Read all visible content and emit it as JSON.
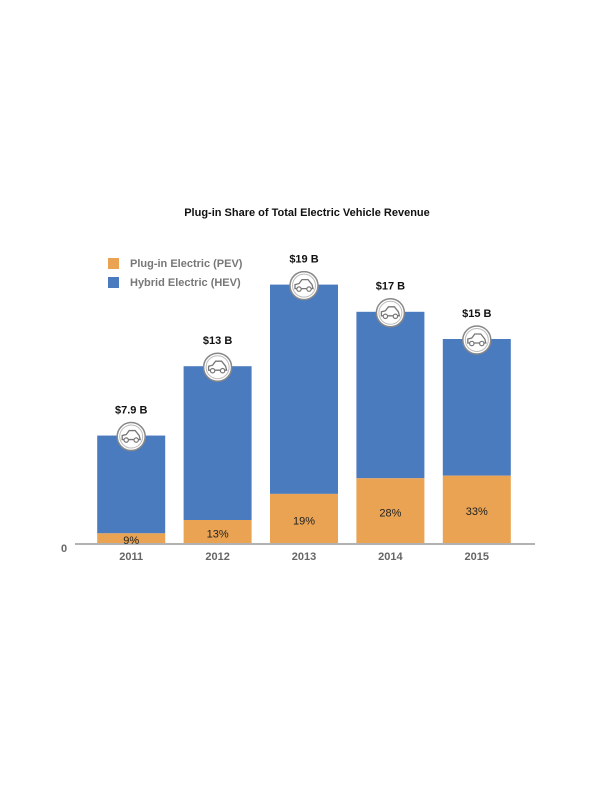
{
  "chart_data": {
    "type": "bar",
    "title": "Plug-in Share of Total Electric Vehicle Revenue",
    "categories": [
      "2011",
      "2012",
      "2013",
      "2014",
      "2015"
    ],
    "totals": {
      "name": "Hybrid Electric (HEV)",
      "color": "#4a7bbf",
      "values": [
        7.9,
        13,
        19,
        17,
        15
      ],
      "value_labels": [
        "$7.9 B",
        "$13 B",
        "$19 B",
        "$17 B",
        "$15 B"
      ]
    },
    "share": {
      "name": "Plug-in Electric (PEV)",
      "color": "#e9a353",
      "values": [
        9,
        13,
        19,
        28,
        33
      ],
      "value_labels": [
        "9%",
        "13%",
        "19%",
        "28%",
        "33%"
      ]
    },
    "ylim": [
      0,
      20
    ],
    "yticks": [
      0
    ]
  }
}
